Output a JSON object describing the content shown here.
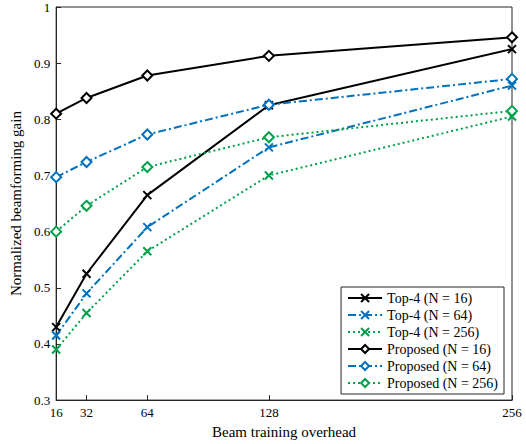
{
  "chart_data": {
    "type": "line",
    "x_label": "Beam training overhead",
    "y_label": "Normalized beamforming gain",
    "x": [
      16,
      32,
      64,
      128,
      256
    ],
    "xlim": [
      16,
      256
    ],
    "xticks": [
      16,
      32,
      64,
      128,
      256
    ],
    "ylim": [
      0.3,
      1
    ],
    "yticks": [
      0.3,
      0.4,
      0.5,
      0.6,
      0.7,
      0.8,
      0.9,
      1
    ],
    "grid": false,
    "legend": "lower right",
    "series": [
      {
        "name": "Top-4 (N = 16)",
        "color": "#000000",
        "marker": "x",
        "line_style": "solid",
        "values": [
          0.43,
          0.525,
          0.665,
          0.825,
          0.925
        ]
      },
      {
        "name": "Top-4 (N = 64)",
        "color": "#0072bd",
        "marker": "x",
        "line_style": "dashdot",
        "values": [
          0.415,
          0.49,
          0.608,
          0.75,
          0.86
        ]
      },
      {
        "name": "Top-4 (N = 256)",
        "color": "#00a14b",
        "marker": "x",
        "line_style": "dotted",
        "values": [
          0.39,
          0.455,
          0.565,
          0.7,
          0.805
        ]
      },
      {
        "name": "Proposed (N = 16)",
        "color": "#000000",
        "marker": "diamond",
        "line_style": "solid",
        "values": [
          0.81,
          0.838,
          0.878,
          0.913,
          0.946
        ]
      },
      {
        "name": "Proposed (N = 64)",
        "color": "#0072bd",
        "marker": "diamond",
        "line_style": "dashdot",
        "values": [
          0.697,
          0.724,
          0.773,
          0.826,
          0.872
        ]
      },
      {
        "name": "Proposed (N = 256)",
        "color": "#00a14b",
        "marker": "diamond",
        "line_style": "dotted",
        "values": [
          0.6,
          0.646,
          0.715,
          0.768,
          0.815
        ]
      }
    ]
  }
}
